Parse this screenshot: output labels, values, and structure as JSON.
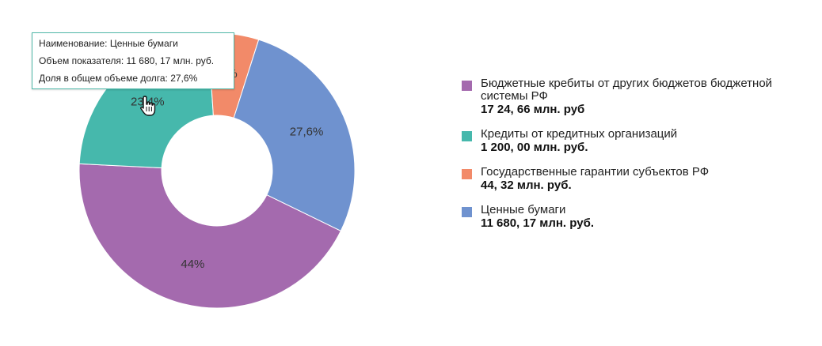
{
  "chart_data": {
    "type": "pie",
    "donut": true,
    "categories": [
      "Бюджетные кребиты от других бюджетов бюджетной системы РФ",
      "Кредиты от кредитных организаций",
      "Государственные гарантии субъектов РФ",
      "Ценные бумаги"
    ],
    "values": [
      44,
      23.4,
      6,
      27.6
    ],
    "slice_labels": [
      "44%",
      "23,4%",
      "6%",
      "27,6%"
    ],
    "colors": [
      "#a46aae",
      "#46b8ac",
      "#f28a69",
      "#6f92cf"
    ],
    "legend_position": "right"
  },
  "legend": [
    {
      "name": "Бюджетные кребиты от других бюджетов бюджетной системы РФ",
      "value": "17 24, 66 млн. руб",
      "color": "#a46aae"
    },
    {
      "name": "Кредиты от кредитных организаций",
      "value": "1 200, 00 млн. руб.",
      "color": "#46b8ac"
    },
    {
      "name": "Государственные гарантии субъектов РФ",
      "value": "44, 32 млн. руб.",
      "color": "#f28a69"
    },
    {
      "name": "Ценные бумаги",
      "value": "11 680, 17 млн. руб.",
      "color": "#6f92cf"
    }
  ],
  "tooltip": {
    "name_line": "Наименование: Ценные бумаги",
    "volume_line": "Объем показателя: 11 680, 17 млн. руб.",
    "share_line": "Доля в общем объеме долга: 27,6%",
    "border_color": "#4fb8a8"
  },
  "cursor_icon": "hand-pointer-icon"
}
